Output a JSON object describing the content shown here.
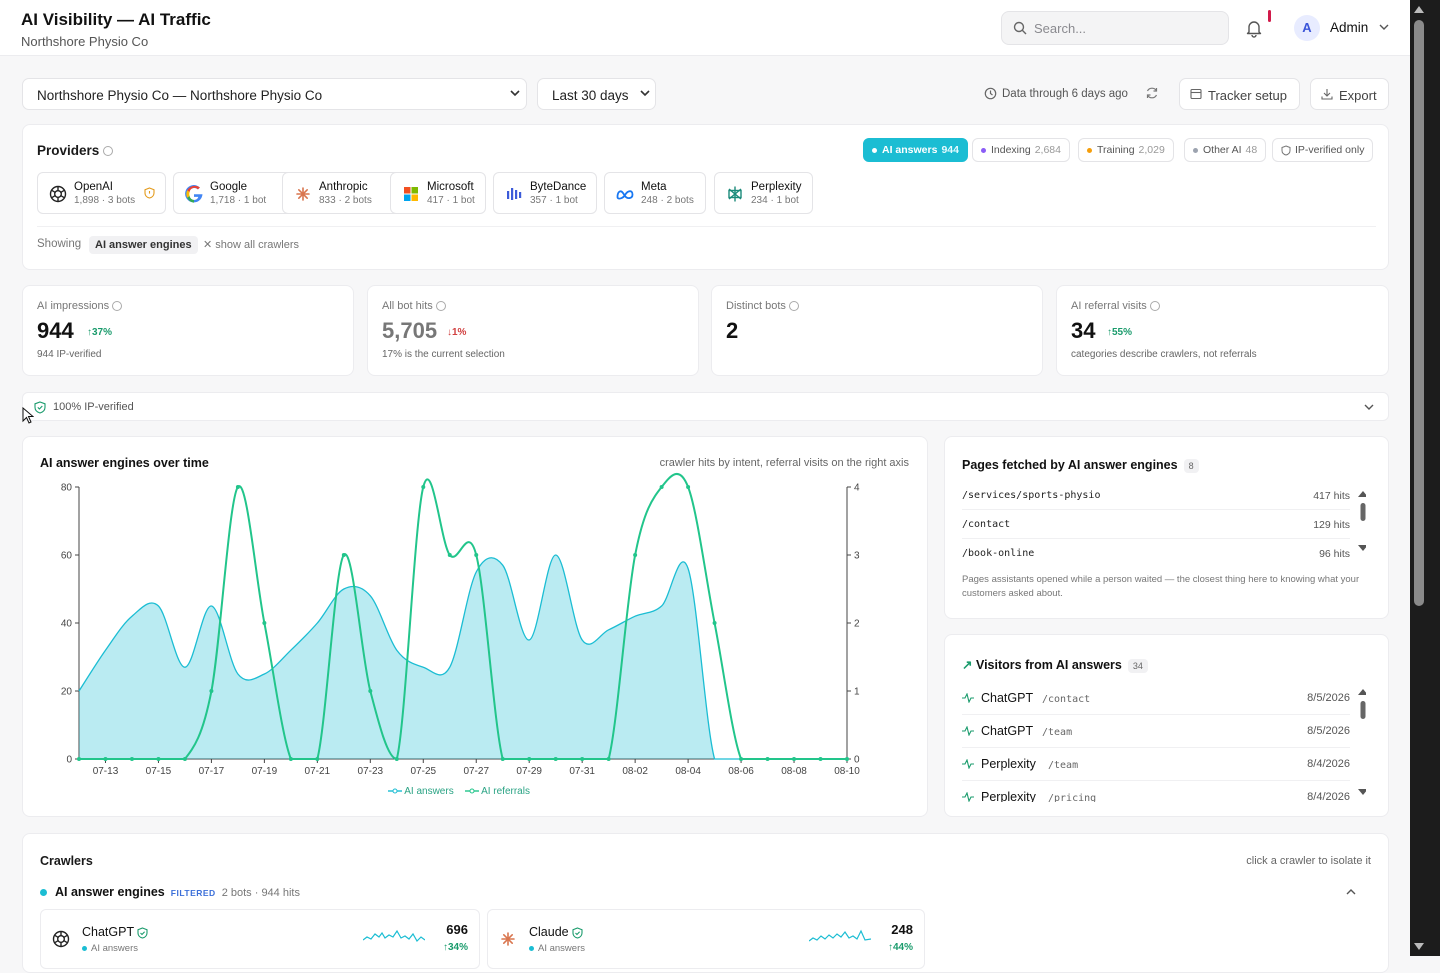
{
  "header": {
    "title": "AI Visibility — AI Traffic",
    "subtitle": "Northshore Physio Co",
    "search_placeholder": "Search...",
    "avatar_letter": "A",
    "user": "Admin"
  },
  "toolbar": {
    "site": "Northshore Physio Co — Northshore Physio Co",
    "range": "Last 30 days",
    "data_through": "Data through 6 days ago",
    "tracker": "Tracker setup",
    "export": "Export"
  },
  "providers": {
    "heading": "Providers",
    "filters": [
      {
        "label": "AI answers",
        "count": "944",
        "color": "#ffffff"
      },
      {
        "label": "Indexing",
        "count": "2,684",
        "color": "#8b5cf6"
      },
      {
        "label": "Training",
        "count": "2,029",
        "color": "#f59e0b"
      },
      {
        "label": "Other AI",
        "count": "48",
        "color": "#9ca3af"
      },
      {
        "label": "IP-verified only",
        "count": "",
        "color": ""
      }
    ],
    "items": [
      {
        "name": "OpenAI",
        "meta": "1,898 · 3 bots",
        "icon": "openai-icon"
      },
      {
        "name": "Google",
        "meta": "1,718 · 1 bot",
        "icon": "google-icon"
      },
      {
        "name": "Anthropic",
        "meta": "833 · 2 bots",
        "icon": "anthropic-icon"
      },
      {
        "name": "Microsoft",
        "meta": "417 · 1 bot",
        "icon": "microsoft-icon"
      },
      {
        "name": "ByteDance",
        "meta": "357 · 1 bot",
        "icon": "bytedance-icon"
      },
      {
        "name": "Meta",
        "meta": "248 · 2 bots",
        "icon": "meta-icon"
      },
      {
        "name": "Perplexity",
        "meta": "234 · 1 bot",
        "icon": "perplexity-icon"
      }
    ],
    "showing_label": "Showing",
    "showing_value": "AI answer engines",
    "show_all": "show all crawlers"
  },
  "kpis": [
    {
      "label": "AI impressions",
      "value": "944",
      "delta": "37%",
      "dir": "up",
      "sub": "944 IP-verified"
    },
    {
      "label": "All bot hits",
      "value": "5,705",
      "delta": "1%",
      "dir": "down",
      "sub": "17% is the current selection"
    },
    {
      "label": "Distinct bots",
      "value": "2",
      "delta": "",
      "dir": "",
      "sub": ""
    },
    {
      "label": "AI referral visits",
      "value": "34",
      "delta": "55%",
      "dir": "up",
      "sub": "categories describe crawlers, not referrals"
    }
  ],
  "verified": "100% IP-verified",
  "chart": {
    "title": "AI answer engines over time",
    "note": "crawler hits by intent, referral visits on the right axis",
    "legend_a": "AI answers",
    "legend_b": "AI referrals"
  },
  "chart_data": {
    "type": "area",
    "x": [
      "07-12",
      "07-13",
      "07-14",
      "07-15",
      "07-16",
      "07-17",
      "07-18",
      "07-19",
      "07-20",
      "07-21",
      "07-22",
      "07-23",
      "07-24",
      "07-25",
      "07-26",
      "07-27",
      "07-28",
      "07-29",
      "07-30",
      "07-31",
      "08-01",
      "08-02",
      "08-03",
      "08-04",
      "08-05",
      "08-06",
      "08-07",
      "08-08",
      "08-09",
      "08-10"
    ],
    "x_tick_labels": [
      "07-13",
      "07-15",
      "07-17",
      "07-19",
      "07-21",
      "07-23",
      "07-25",
      "07-27",
      "07-29",
      "07-31",
      "08-02",
      "08-04",
      "08-06",
      "08-08",
      "08-10"
    ],
    "ylim": [
      0,
      80
    ],
    "y_ticks": [
      0,
      20,
      40,
      60,
      80
    ],
    "y2lim": [
      0,
      4
    ],
    "y2_ticks": [
      0,
      1,
      2,
      3,
      4
    ],
    "series": [
      {
        "name": "AI answers",
        "axis": "left",
        "type": "area",
        "color": "#1bbdd3",
        "values": [
          20,
          32,
          42,
          45,
          27,
          45,
          25,
          25,
          32,
          40,
          50,
          48,
          32,
          27,
          27,
          55,
          57,
          35,
          60,
          35,
          38,
          42,
          45,
          56,
          0,
          0,
          0,
          0,
          0,
          0
        ]
      },
      {
        "name": "AI referrals",
        "axis": "right",
        "type": "line",
        "color": "#22c58b",
        "values": [
          0,
          0,
          0,
          0,
          0,
          1,
          4,
          2,
          0,
          0,
          3,
          1,
          0,
          4,
          3,
          3,
          0,
          0,
          0,
          0,
          0,
          3,
          4,
          4,
          2,
          0,
          0,
          0,
          0,
          0
        ]
      }
    ]
  },
  "pages": {
    "title": "Pages fetched by AI answer engines",
    "count": "8",
    "rows": [
      {
        "path": "/services/sports-physio",
        "hits": "417 hits"
      },
      {
        "path": "/contact",
        "hits": "129 hits"
      },
      {
        "path": "/book-online",
        "hits": "96 hits"
      }
    ],
    "note": "Pages assistants opened while a person waited — the closest thing here to knowing what your customers asked about."
  },
  "visitors": {
    "title": "Visitors from AI answers",
    "count": "34",
    "rows": [
      {
        "engine": "ChatGPT",
        "path": "/contact",
        "date": "8/5/2026"
      },
      {
        "engine": "ChatGPT",
        "path": "/team",
        "date": "8/5/2026"
      },
      {
        "engine": "Perplexity",
        "path": "/team",
        "date": "8/4/2026"
      },
      {
        "engine": "Perplexity",
        "path": "/pricing",
        "date": "8/4/2026"
      }
    ]
  },
  "crawlers": {
    "title": "Crawlers",
    "note": "click a crawler to isolate it",
    "group": "AI answer engines",
    "filtered": "FILTERED",
    "group_meta": "2 bots · 944 hits",
    "bots": [
      {
        "name": "ChatGPT",
        "category": "AI answers",
        "hits": "696",
        "delta": "34%"
      },
      {
        "name": "Claude",
        "category": "AI answers",
        "hits": "248",
        "delta": "44%"
      }
    ]
  },
  "colors": {
    "accent": "#1bbdd3",
    "referral": "#22c58b",
    "up": "#1a9b6c",
    "down": "#d14040"
  }
}
